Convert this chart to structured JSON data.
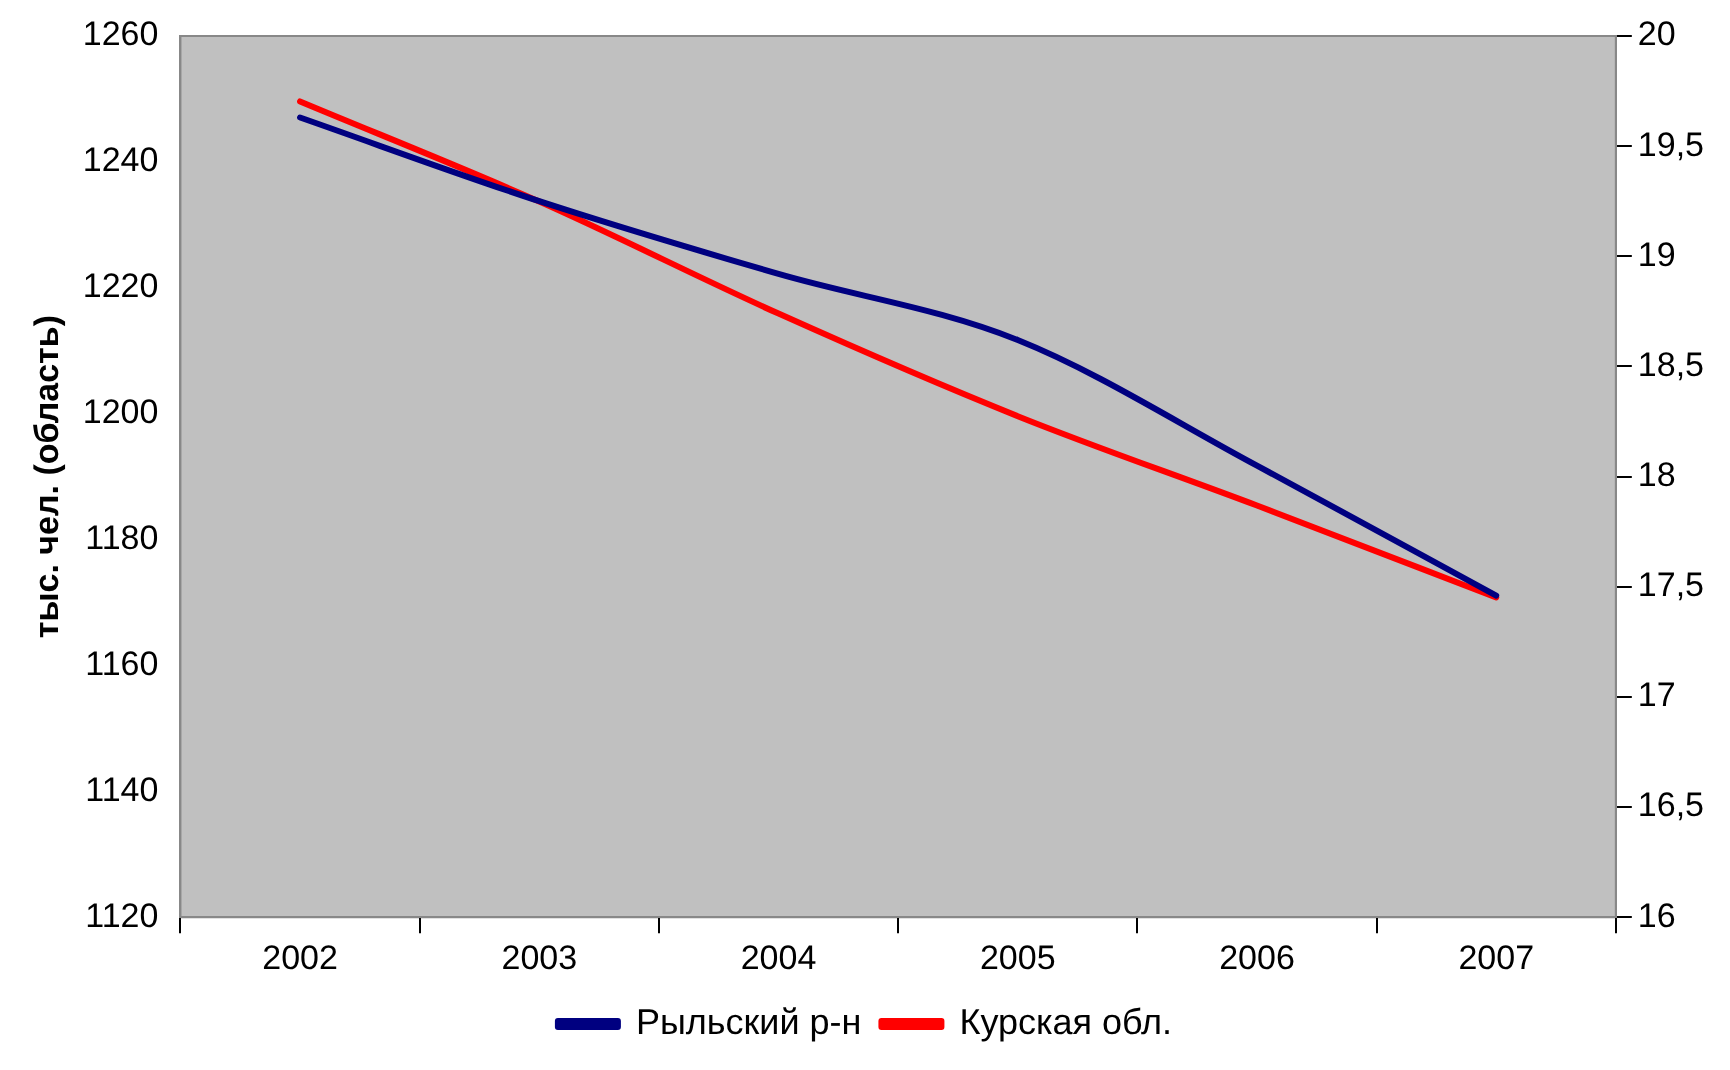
{
  "chart_data": {
    "type": "line",
    "ylabel": "тыс. чел. (область)",
    "categories": [
      "2002",
      "2003",
      "2004",
      "2005",
      "2006",
      "2007"
    ],
    "series": [
      {
        "name": "Рыльский р-н",
        "color": "#000080",
        "axis": "y2",
        "values": [
          19.63,
          19.25,
          18.92,
          18.62,
          18.05,
          17.46
        ]
      },
      {
        "name": "Курская обл.",
        "color": "#ff0000",
        "values": [
          1249.6,
          1233.7,
          1215.9,
          1199.6,
          1185.4,
          1170.8
        ]
      }
    ],
    "ylim": [
      1120,
      1260
    ],
    "yticks": [
      1120,
      1140,
      1160,
      1180,
      1200,
      1220,
      1240,
      1260
    ],
    "y2lim": [
      16,
      20
    ],
    "y2ticks": [
      16,
      {
        "value": 16.5,
        "label": "16,5"
      },
      17,
      {
        "value": 17.5,
        "label": "17,5"
      },
      18,
      {
        "value": 18.5,
        "label": "18,5"
      },
      19,
      {
        "value": 19.5,
        "label": "19,5"
      },
      20
    ],
    "grid": false,
    "legend": "bottom",
    "marker": "none",
    "line_style": "solid"
  }
}
